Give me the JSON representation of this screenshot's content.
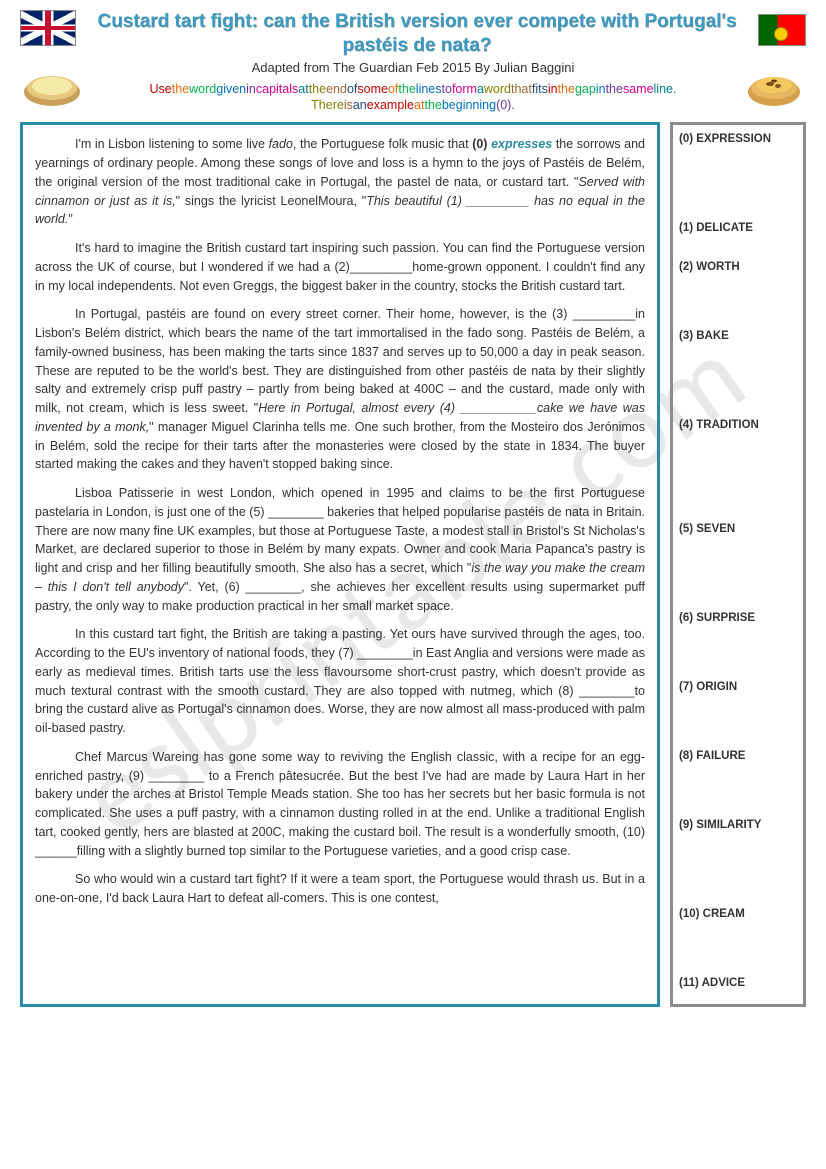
{
  "title": "Custard tart fight: can the British version ever compete with Portugal's pastéis de nata?",
  "byline": "Adapted from The Guardian Feb 2015   By Julian Baggini",
  "instruction_words": [
    {
      "t": "Use",
      "c": "w-red"
    },
    {
      "t": "the",
      "c": "w-orange"
    },
    {
      "t": "word",
      "c": "w-green"
    },
    {
      "t": "given",
      "c": "w-blue"
    },
    {
      "t": "in",
      "c": "w-purple"
    },
    {
      "t": "capitals",
      "c": "w-pink"
    },
    {
      "t": "at",
      "c": "w-teal"
    },
    {
      "t": "the",
      "c": "w-olive"
    },
    {
      "t": "end",
      "c": "w-brown"
    },
    {
      "t": "of",
      "c": "w-navy"
    },
    {
      "t": "some",
      "c": "w-red"
    },
    {
      "t": "of",
      "c": "w-orange"
    },
    {
      "t": "the",
      "c": "w-green"
    },
    {
      "t": "lines",
      "c": "w-blue"
    },
    {
      "t": "to",
      "c": "w-purple"
    },
    {
      "t": "form",
      "c": "w-pink"
    },
    {
      "t": "a",
      "c": "w-teal"
    },
    {
      "t": "word",
      "c": "w-olive"
    },
    {
      "t": "that",
      "c": "w-brown"
    },
    {
      "t": "fits",
      "c": "w-navy"
    },
    {
      "t": "in",
      "c": "w-red"
    },
    {
      "t": "the",
      "c": "w-orange"
    },
    {
      "t": "gap",
      "c": "w-green"
    },
    {
      "t": "in",
      "c": "w-blue"
    },
    {
      "t": "the",
      "c": "w-purple"
    },
    {
      "t": "same",
      "c": "w-pink"
    },
    {
      "t": "line.",
      "c": "w-teal"
    },
    {
      "t": " There",
      "c": "w-olive"
    },
    {
      "t": "is",
      "c": "w-brown"
    },
    {
      "t": "an",
      "c": "w-navy"
    },
    {
      "t": "example",
      "c": "w-red"
    },
    {
      "t": "at",
      "c": "w-orange"
    },
    {
      "t": "the",
      "c": "w-green"
    },
    {
      "t": "beginning",
      "c": "w-blue"
    },
    {
      "t": "(0).",
      "c": "w-purple"
    }
  ],
  "paragraphs": {
    "p1a": "I'm in Lisbon listening to some live ",
    "p1b": "fado",
    "p1c": ", the Portuguese folk music that ",
    "p1d": "(0) ",
    "p1e": "expresses",
    "p1f": " the sorrows and yearnings of ordinary people. Among these songs of love and loss is a hymn to the joys of Pastéis de Belém, the original version of the most traditional cake in Portugal, the pastel de nata, or custard tart. \"",
    "p1g": "Served with cinnamon or just as it is,",
    "p1h": "\" sings the lyricist LeonelMoura, \"",
    "p1i": "This beautiful (1) _________ has no equal in the world.",
    "p1j": "\"",
    "p2": "It's hard to imagine the British custard tart inspiring such passion. You can find the Portuguese version across the UK of course, but I wondered if we had a (2)_________home-grown opponent. I couldn't find any in my local independents. Not even Greggs, the biggest baker in the country, stocks the British custard tart.",
    "p3a": "In Portugal, pastéis are found on every street corner. Their home, however, is the (3) _________in Lisbon's Belém district, which bears the name of the tart immortalised in the fado song. Pastéis de Belém, a family-owned business, has been making the tarts since 1837 and serves up to 50,000 a day in peak season. These are reputed to be the world's best. They are distinguished from other pastéis de nata by their slightly salty and extremely crisp puff pastry – partly from being baked at 400C – and the custard, made only with milk, not cream, which is less sweet. \"",
    "p3b": "Here in Portugal, almost every (4) ___________cake we have was invented by a monk,",
    "p3c": "\" manager Miguel Clarinha tells me. One such brother, from the Mosteiro dos Jerónimos in Belém, sold the recipe for their tarts after the monasteries were closed by the state in 1834. The buyer started making the cakes and they haven't stopped baking since.",
    "p4a": "Lisboa Patisserie in west London, which opened in 1995 and claims to be the first Portuguese pastelaria in London, is just one of the (5) ________ bakeries that helped popularise pastéis de nata in Britain. There are now many fine UK examples, but those at Portuguese Taste, a modest stall in Bristol's St Nicholas's Market, are declared superior to those in Belém by many expats. Owner and cook Maria Papanca's pastry is light and crisp and her filling beautifully smooth. She also has a secret, which \"",
    "p4b": "is the way you make the cream – this I don't tell anybody",
    "p4c": "\". Yet, (6) ________, she achieves her excellent results using supermarket puff pastry, the only way to make production practical in her small market space.",
    "p5": "In this custard tart fight, the British are taking a pasting. Yet ours have survived through the ages, too. According to the EU's inventory of national foods, they (7) ________in East Anglia and versions were made as early as medieval times. British tarts use the less flavoursome short-crust pastry, which doesn't provide as much textural contrast with the smooth custard. They are also topped with nutmeg, which (8) ________to bring the custard alive as Portugal's cinnamon does. Worse, they are now almost all mass-produced with palm oil-based pastry.",
    "p6": "Chef Marcus Wareing has gone some way to reviving the English classic, with a recipe for an egg-enriched pastry, (9) ________ to a French pâtesucrée. But the best I've had are made by Laura Hart in her bakery under the arches at Bristol Temple Meads station. She too has her secrets but her basic formula is not complicated. She uses a puff pastry, with a cinnamon dusting rolled in at the end. Unlike a traditional English tart, cooked gently, hers are blasted at 200C, making the custard boil. The result is a wonderfully smooth, (10) ______filling with a slightly burned top similar to the Portuguese varieties, and a good crisp case.",
    "p7": "So who would win a custard tart fight? If it were a team sport, the Portuguese would thrash us. But in a one-on-one, I'd back Laura Hart to defeat all-comers. This is one contest,"
  },
  "sidebar": [
    {
      "n": "(0)",
      "w": "EXPRESSION",
      "gap": "sm"
    },
    {
      "n": "",
      "w": "",
      "gap": "md"
    },
    {
      "n": "(1)",
      "w": "DELICATE",
      "gap": "sm"
    },
    {
      "n": "",
      "w": "",
      "gap": ""
    },
    {
      "n": "(2)",
      "w": "WORTH",
      "gap": "md"
    },
    {
      "n": "",
      "w": "",
      "gap": ""
    },
    {
      "n": "(3)",
      "w": "BAKE",
      "gap": "md"
    },
    {
      "n": "",
      "w": "",
      "gap": "sm"
    },
    {
      "n": "(4)",
      "w": "TRADITION",
      "gap": "lg"
    },
    {
      "n": "",
      "w": "",
      "gap": ""
    },
    {
      "n": "(5)",
      "w": "SEVEN",
      "gap": "md"
    },
    {
      "n": "",
      "w": "",
      "gap": "sm"
    },
    {
      "n": "(6)",
      "w": "SURPRISE",
      "gap": "md"
    },
    {
      "n": "",
      "w": "",
      "gap": ""
    },
    {
      "n": "(7)",
      "w": "ORIGIN",
      "gap": "md"
    },
    {
      "n": "",
      "w": "",
      "gap": ""
    },
    {
      "n": "(8)",
      "w": "FAILURE",
      "gap": "md"
    },
    {
      "n": "",
      "w": "",
      "gap": ""
    },
    {
      "n": "(9)",
      "w": "SIMILARITY",
      "gap": "md"
    },
    {
      "n": "",
      "w": "",
      "gap": "sm"
    },
    {
      "n": "(10)",
      "w": "CREAM",
      "gap": "md"
    },
    {
      "n": "",
      "w": "",
      "gap": ""
    },
    {
      "n": "(11)",
      "w": "ADVICE",
      "gap": ""
    }
  ],
  "colors": {
    "title": "#3b9bc4",
    "main_border": "#2a8ba8",
    "side_border": "#8c8c8c"
  }
}
